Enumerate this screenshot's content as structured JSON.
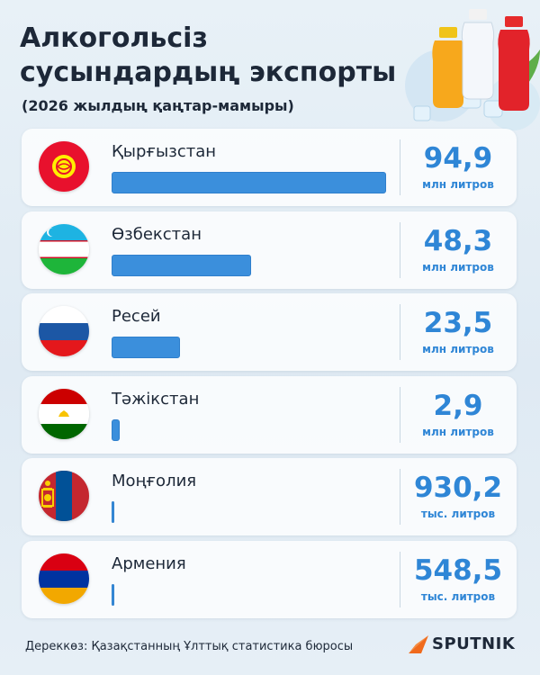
{
  "header": {
    "title": "Алкогольсіз сусындардың экспорты",
    "subtitle": "(2026 жылдың қаңтар-мамыры)"
  },
  "colors": {
    "accent": "#2f86d6",
    "bar": "#3b8fdc",
    "brand_orange": "#f06a1c"
  },
  "chart_data": {
    "type": "bar",
    "orientation": "horizontal",
    "title": "Алкогольсіз сусындардың экспорты",
    "subtitle": "(2026 жылдың қаңтар-мамыры)",
    "categories": [
      "Қырғызстан",
      "Өзбекстан",
      "Ресей",
      "Тәжікстан",
      "Моңғолия",
      "Армения"
    ],
    "values": [
      94.9,
      48.3,
      23.5,
      2.9,
      0.9302,
      0.5485
    ],
    "value_unit": "млн литров",
    "items": [
      {
        "country": "Қырғызстан",
        "value_label": "94,9",
        "unit": "млн литров",
        "flag": "kyrgyzstan-flag-icon"
      },
      {
        "country": "Өзбекстан",
        "value_label": "48,3",
        "unit": "млн литров",
        "flag": "uzbekistan-flag-icon"
      },
      {
        "country": "Ресей",
        "value_label": "23,5",
        "unit": "млн литров",
        "flag": "russia-flag-icon"
      },
      {
        "country": "Тәжікстан",
        "value_label": "2,9",
        "unit": "млн литров",
        "flag": "tajikistan-flag-icon"
      },
      {
        "country": "Моңғолия",
        "value_label": "930,2",
        "unit": "тыс. литров",
        "flag": "mongolia-flag-icon"
      },
      {
        "country": "Армения",
        "value_label": "548,5",
        "unit": "тыс. литров",
        "flag": "armenia-flag-icon"
      }
    ]
  },
  "footer": {
    "source": "Дереккөз: Қазақстанның Ұлттық статистика бюросы",
    "logo_text": "SPUTNIK"
  }
}
